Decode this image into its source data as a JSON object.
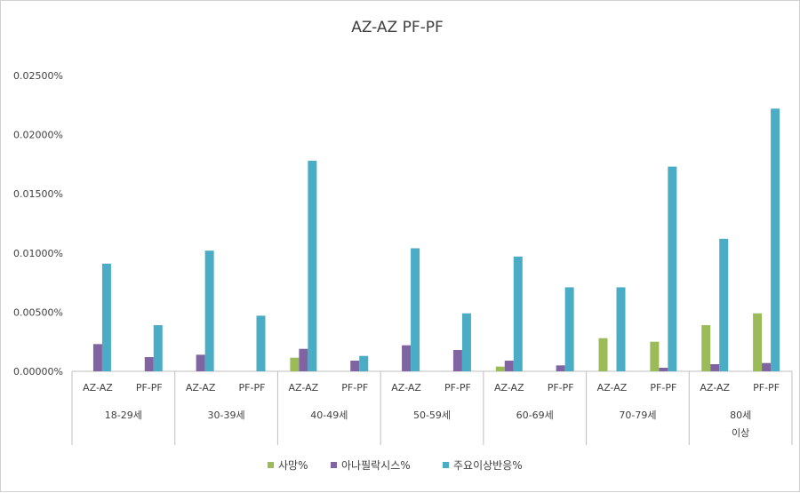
{
  "chart_data": {
    "type": "bar",
    "title": "AZ-AZ  PF-PF",
    "xlabel": "",
    "ylabel": "",
    "ylim": [
      0,
      0.025
    ],
    "yticks": [
      "0.00000%",
      "0.00500%",
      "0.01000%",
      "0.01500%",
      "0.02000%",
      "0.02500%"
    ],
    "grid": false,
    "legend_position": "bottom",
    "groups": [
      {
        "label": [
          "18-29세"
        ],
        "subcategories": [
          "AZ-AZ",
          "PF-PF"
        ]
      },
      {
        "label": [
          "30-39세"
        ],
        "subcategories": [
          "AZ-AZ",
          "PF-PF"
        ]
      },
      {
        "label": [
          "40-49세"
        ],
        "subcategories": [
          "AZ-AZ",
          "PF-PF"
        ]
      },
      {
        "label": [
          "50-59세"
        ],
        "subcategories": [
          "AZ-AZ",
          "PF-PF"
        ]
      },
      {
        "label": [
          "60-69세"
        ],
        "subcategories": [
          "AZ-AZ",
          "PF-PF"
        ]
      },
      {
        "label": [
          "70-79세"
        ],
        "subcategories": [
          "AZ-AZ",
          "PF-PF"
        ]
      },
      {
        "label": [
          "80세",
          "이상"
        ],
        "subcategories": [
          "AZ-AZ",
          "PF-PF"
        ]
      }
    ],
    "series": [
      {
        "name": "사망%",
        "color": "#9bbb59",
        "values": [
          0,
          0,
          0,
          0,
          0.00115,
          0,
          0,
          0,
          0.0004,
          0,
          0.0028,
          0.0025,
          0.0039,
          0.0049
        ]
      },
      {
        "name": "아나필락시스%",
        "color": "#8064a2",
        "values": [
          0.0023,
          0.0012,
          0.0014,
          0,
          0.0019,
          0.0009,
          0.0022,
          0.0018,
          0.0009,
          0.0005,
          0,
          0.0003,
          0.0006,
          0.0007
        ]
      },
      {
        "name": "주요이상반응%",
        "color": "#4bacc6",
        "values": [
          0.0091,
          0.0039,
          0.0102,
          0.0047,
          0.0178,
          0.0013,
          0.0104,
          0.0049,
          0.0097,
          0.0071,
          0.0071,
          0.0173,
          0.0112,
          0.0222
        ]
      }
    ]
  }
}
